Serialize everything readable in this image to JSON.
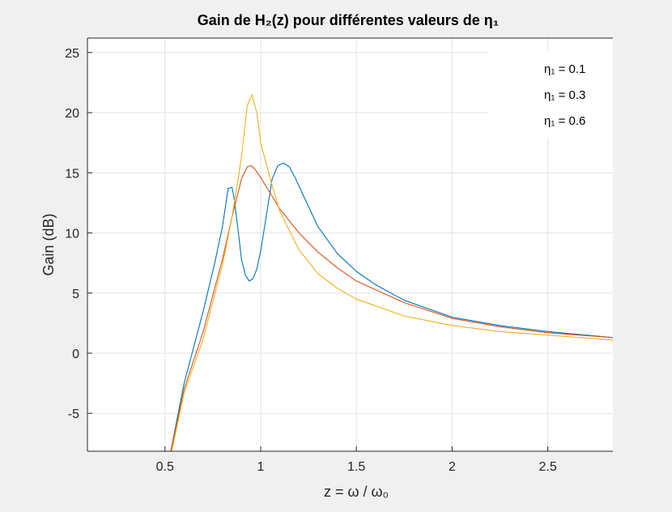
{
  "chart_data": {
    "type": "line",
    "title": "Gain de H₂(z) pour différentes valeurs de η₁",
    "xlabel": "z = ω / ω₀",
    "ylabel": "Gain (dB)",
    "xlim": [
      0.095,
      2.84
    ],
    "ylim": [
      -8.15,
      26.2
    ],
    "xticks": [
      0.5,
      1,
      1.5,
      2,
      2.5
    ],
    "xtick_labels": [
      "0.5",
      "1",
      "1.5",
      "2",
      "2.5"
    ],
    "yticks": [
      -5,
      0,
      5,
      10,
      15,
      20,
      25
    ],
    "ytick_labels": [
      "-5",
      "0",
      "5",
      "10",
      "15",
      "20",
      "25"
    ],
    "grid": true,
    "legend_position": "top-right",
    "series": [
      {
        "name": "η₁ = 0.1",
        "color": "#0072BD",
        "x": [
          0.52,
          0.6,
          0.7,
          0.76,
          0.8,
          0.83,
          0.85,
          0.86,
          0.88,
          0.9,
          0.92,
          0.94,
          0.96,
          0.98,
          1.0,
          1.03,
          1.06,
          1.09,
          1.12,
          1.15,
          1.18,
          1.22,
          1.3,
          1.4,
          1.5,
          1.6,
          1.75,
          2.0,
          2.25,
          2.5,
          2.84
        ],
        "y": [
          -9,
          -2.5,
          3.5,
          7.5,
          10.5,
          13.7,
          13.8,
          13,
          10.5,
          7.8,
          6.5,
          6.0,
          6.2,
          7.0,
          8.5,
          11.5,
          14.5,
          15.6,
          15.8,
          15.5,
          14.6,
          13.2,
          10.5,
          8.3,
          6.8,
          5.7,
          4.4,
          3.0,
          2.3,
          1.8,
          1.3
        ]
      },
      {
        "name": "η₁ = 0.3",
        "color": "#D95319",
        "x": [
          0.52,
          0.6,
          0.7,
          0.8,
          0.85,
          0.9,
          0.93,
          0.95,
          0.97,
          1.0,
          1.05,
          1.1,
          1.2,
          1.3,
          1.4,
          1.5,
          1.75,
          2.0,
          2.25,
          2.5,
          2.84
        ],
        "y": [
          -9,
          -3,
          1.8,
          7.8,
          11.3,
          14.5,
          15.5,
          15.6,
          15.3,
          14.6,
          13.3,
          12.0,
          10.0,
          8.4,
          7.1,
          6.0,
          4.2,
          2.9,
          2.2,
          1.7,
          1.3
        ]
      },
      {
        "name": "η₁ = 0.6",
        "color": "#EDB120",
        "x": [
          0.52,
          0.6,
          0.7,
          0.8,
          0.85,
          0.9,
          0.93,
          0.955,
          0.98,
          1.0,
          1.05,
          1.1,
          1.2,
          1.3,
          1.4,
          1.5,
          1.75,
          2.0,
          2.25,
          2.5,
          2.84
        ],
        "y": [
          -9.3,
          -3.3,
          1.2,
          7.3,
          11.3,
          16.3,
          20.6,
          21.5,
          20,
          17.5,
          14.5,
          11.8,
          8.6,
          6.6,
          5.4,
          4.5,
          3.1,
          2.3,
          1.8,
          1.5,
          1.1
        ]
      }
    ]
  }
}
